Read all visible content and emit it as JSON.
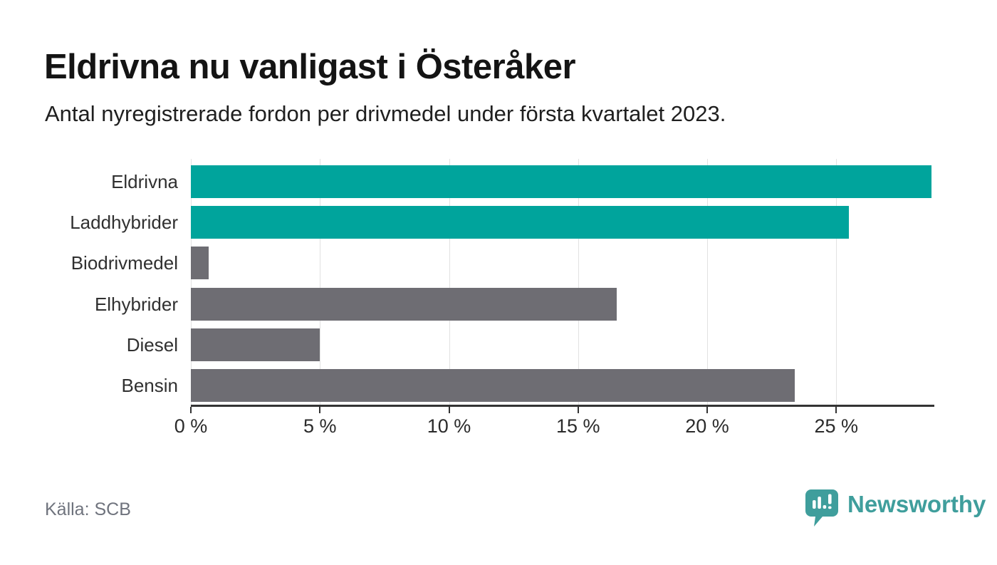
{
  "header": {
    "title": "Eldrivna nu vanligast i Österåker",
    "subtitle": "Antal nyregistrerade fordon per drivmedel under första kvartalet 2023."
  },
  "chart_data": {
    "type": "bar",
    "orientation": "horizontal",
    "title": "Eldrivna nu vanligast i Österåker",
    "subtitle": "Antal nyregistrerade fordon per drivmedel under första kvartalet 2023.",
    "categories": [
      "Eldrivna",
      "Laddhybrider",
      "Biodrivmedel",
      "Elhybrider",
      "Diesel",
      "Bensin"
    ],
    "values": [
      28.7,
      25.5,
      0.7,
      16.5,
      5.0,
      23.4
    ],
    "unit": "%",
    "xlim": [
      0,
      28.8
    ],
    "x_ticks": [
      0,
      5,
      10,
      15,
      20,
      25
    ],
    "x_tick_labels": [
      "0 %",
      "5 %",
      "10 %",
      "15 %",
      "20 %",
      "25 %"
    ],
    "bar_colors": [
      "#00a49c",
      "#00a49c",
      "#6e6d73",
      "#6e6d73",
      "#6e6d73",
      "#6e6d73"
    ],
    "colors": {
      "highlight": "#00a49c",
      "default": "#6e6d73",
      "gridline": "#e2e2e2",
      "axis": "#333333"
    },
    "grid": true,
    "legend": false
  },
  "footer": {
    "source": "Källa: SCB",
    "brand": "Newsworthy",
    "brand_color": "#3f9e9c"
  }
}
